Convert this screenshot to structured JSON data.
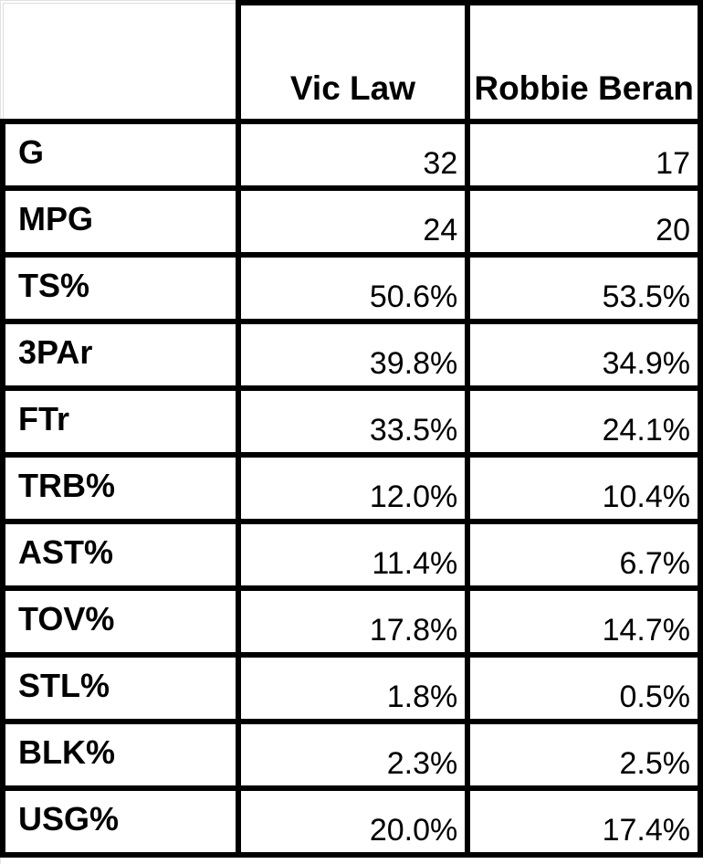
{
  "table": {
    "corner_label": "",
    "columns": [
      "Vic Law",
      "Robbie Beran"
    ],
    "rows": [
      {
        "label": "G",
        "values": [
          "32",
          "17"
        ]
      },
      {
        "label": "MPG",
        "values": [
          "24",
          "20"
        ]
      },
      {
        "label": "TS%",
        "values": [
          "50.6%",
          "53.5%"
        ]
      },
      {
        "label": "3PAr",
        "values": [
          "39.8%",
          "34.9%"
        ]
      },
      {
        "label": "FTr",
        "values": [
          "33.5%",
          "24.1%"
        ]
      },
      {
        "label": "TRB%",
        "values": [
          "12.0%",
          "10.4%"
        ]
      },
      {
        "label": "AST%",
        "values": [
          "11.4%",
          "6.7%"
        ]
      },
      {
        "label": "TOV%",
        "values": [
          "17.8%",
          "14.7%"
        ]
      },
      {
        "label": "STL%",
        "values": [
          "1.8%",
          "0.5%"
        ]
      },
      {
        "label": "BLK%",
        "values": [
          "2.3%",
          "2.5%"
        ]
      },
      {
        "label": "USG%",
        "values": [
          "20.0%",
          "17.4%"
        ]
      }
    ]
  }
}
